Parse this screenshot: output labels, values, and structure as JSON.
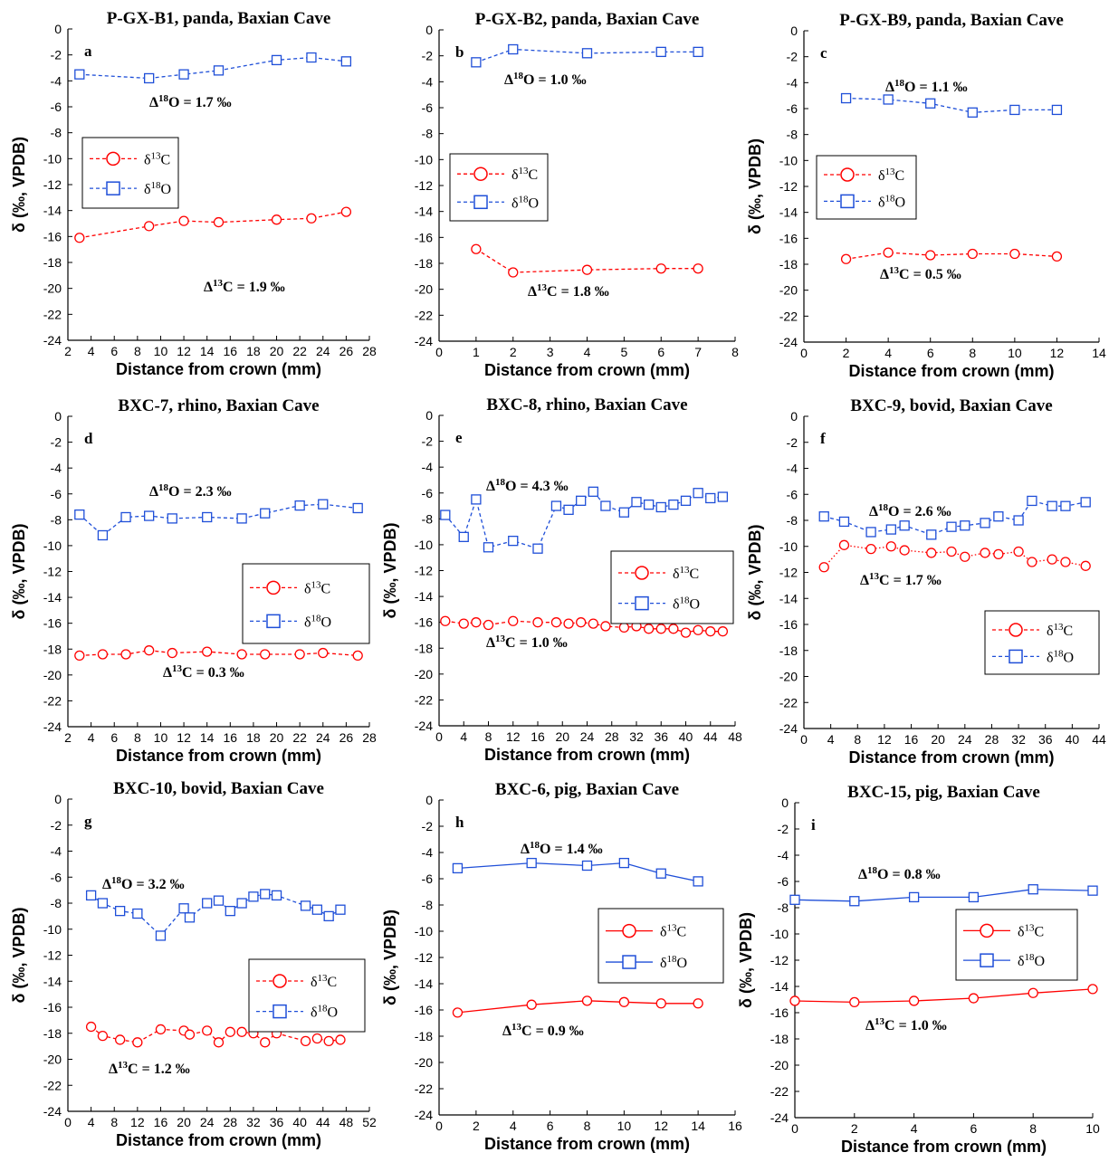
{
  "figure": {
    "colors": {
      "d13C": "#ff0000",
      "d18O": "#1f4fd8"
    },
    "legend": {
      "d13C_label": "δ13C",
      "d18O_label": "δ18O"
    }
  },
  "chart_data": [
    {
      "type": "line",
      "panel_label": "a",
      "title": "P-GX-B1, panda, Baxian Cave",
      "xlabel": "Distance from crown (mm)",
      "ylabel": "δ (‰, VPDB)",
      "xlim": [
        2,
        28
      ],
      "xticks": [
        2,
        4,
        6,
        8,
        10,
        12,
        14,
        16,
        18,
        20,
        22,
        24,
        26,
        28
      ],
      "ylim": [
        -24,
        0
      ],
      "line_style": "dashed",
      "legend_position": "middle-left",
      "series": [
        {
          "name": "δ13C",
          "x": [
            3,
            9,
            12,
            15,
            20,
            23,
            26
          ],
          "y": [
            -16.1,
            -15.2,
            -14.8,
            -14.9,
            -14.7,
            -14.6,
            -14.1
          ]
        },
        {
          "name": "δ18O",
          "x": [
            3,
            9,
            12,
            15,
            20,
            23,
            26
          ],
          "y": [
            -3.5,
            -3.8,
            -3.5,
            -3.2,
            -2.4,
            -2.2,
            -2.5
          ]
        }
      ],
      "annotations": {
        "o": "1.7 ‰",
        "c": "1.9 ‰"
      }
    },
    {
      "type": "line",
      "panel_label": "b",
      "title": "P-GX-B2, panda, Baxian Cave",
      "xlabel": "Distance from crown (mm)",
      "ylabel": "",
      "xlim": [
        0,
        8
      ],
      "xticks": [
        0,
        1,
        2,
        3,
        4,
        5,
        6,
        7,
        8
      ],
      "ylim": [
        -24,
        0
      ],
      "line_style": "dashed",
      "legend_position": "middle-left",
      "series": [
        {
          "name": "δ13C",
          "x": [
            1,
            2,
            4,
            6,
            7
          ],
          "y": [
            -16.9,
            -18.7,
            -18.5,
            -18.4,
            -18.4
          ]
        },
        {
          "name": "δ18O",
          "x": [
            1,
            2,
            4,
            6,
            7
          ],
          "y": [
            -2.5,
            -1.5,
            -1.8,
            -1.7,
            -1.7
          ]
        }
      ],
      "annotations": {
        "o": "1.0 ‰",
        "c": "1.8 ‰"
      }
    },
    {
      "type": "line",
      "panel_label": "c",
      "title": "P-GX-B9, panda, Baxian Cave",
      "xlabel": "Distance from crown (mm)",
      "ylabel": "δ (‰, VPDB)",
      "xlim": [
        0,
        14
      ],
      "xticks": [
        0,
        2,
        4,
        6,
        8,
        10,
        12,
        14
      ],
      "ylim": [
        -24,
        0
      ],
      "line_style": "dashed",
      "legend_position": "middle-left",
      "series": [
        {
          "name": "δ13C",
          "x": [
            2,
            4,
            6,
            8,
            10,
            12
          ],
          "y": [
            -17.6,
            -17.1,
            -17.3,
            -17.2,
            -17.2,
            -17.4
          ]
        },
        {
          "name": "δ18O",
          "x": [
            2,
            4,
            6,
            8,
            10,
            12
          ],
          "y": [
            -5.2,
            -5.3,
            -5.6,
            -6.3,
            -6.1,
            -6.1
          ]
        }
      ],
      "annotations": {
        "o": "1.1 ‰",
        "c": "0.5 ‰"
      }
    },
    {
      "type": "line",
      "panel_label": "d",
      "title": "BXC-7, rhino, Baxian Cave",
      "xlabel": "Distance from crown (mm)",
      "ylabel": "δ (‰, VPDB)",
      "xlim": [
        2,
        28
      ],
      "xticks": [
        2,
        4,
        6,
        8,
        10,
        12,
        14,
        16,
        18,
        20,
        22,
        24,
        26,
        28
      ],
      "ylim": [
        -24,
        0
      ],
      "line_style": "dashed",
      "legend_position": "middle-right",
      "series": [
        {
          "name": "δ13C",
          "x": [
            3,
            5,
            7,
            9,
            11,
            14,
            17,
            19,
            22,
            24,
            27
          ],
          "y": [
            -18.5,
            -18.4,
            -18.4,
            -18.1,
            -18.3,
            -18.2,
            -18.4,
            -18.4,
            -18.4,
            -18.3,
            -18.5
          ]
        },
        {
          "name": "δ18O",
          "x": [
            3,
            5,
            7,
            9,
            11,
            14,
            17,
            19,
            22,
            24,
            27
          ],
          "y": [
            -7.6,
            -9.2,
            -7.8,
            -7.7,
            -7.9,
            -7.8,
            -7.9,
            -7.5,
            -6.9,
            -6.8,
            -7.1
          ]
        }
      ],
      "annotations": {
        "o": "2.3 ‰",
        "c": "0.3 ‰"
      }
    },
    {
      "type": "line",
      "panel_label": "e",
      "title": "BXC-8,  rhino, Baxian Cave",
      "xlabel": "Distance from crown (mm)",
      "ylabel": "δ (‰, VPDB)",
      "xlim": [
        0,
        48
      ],
      "xticks": [
        0,
        4,
        8,
        12,
        16,
        20,
        24,
        28,
        32,
        36,
        40,
        44,
        48
      ],
      "ylim": [
        -24,
        0
      ],
      "line_style": "dashed",
      "legend_position": "middle-right",
      "series": [
        {
          "name": "δ13C",
          "x": [
            1,
            4,
            6,
            8,
            12,
            16,
            19,
            21,
            23,
            25,
            27,
            30,
            32,
            34,
            36,
            38,
            40,
            42,
            44,
            46
          ],
          "y": [
            -15.9,
            -16.1,
            -16.0,
            -16.2,
            -15.9,
            -16.0,
            -16.0,
            -16.1,
            -16.0,
            -16.1,
            -16.3,
            -16.4,
            -16.3,
            -16.5,
            -16.5,
            -16.5,
            -16.8,
            -16.6,
            -16.7,
            -16.7
          ]
        },
        {
          "name": "δ18O",
          "x": [
            1,
            4,
            6,
            8,
            12,
            16,
            19,
            21,
            23,
            25,
            27,
            30,
            32,
            34,
            36,
            38,
            40,
            42,
            44,
            46
          ],
          "y": [
            -7.7,
            -9.4,
            -6.5,
            -10.2,
            -9.7,
            -10.3,
            -7.0,
            -7.3,
            -6.6,
            -5.9,
            -7.0,
            -7.5,
            -6.7,
            -6.9,
            -7.1,
            -6.9,
            -6.6,
            -6.0,
            -6.4,
            -6.3
          ]
        }
      ],
      "annotations": {
        "o": "4.3 ‰",
        "c": "1.0 ‰"
      }
    },
    {
      "type": "line",
      "panel_label": "f",
      "title": "BXC-9, bovid, Baxian Cave",
      "xlabel": "Distance from crown (mm)",
      "ylabel": "δ (‰, VPDB)",
      "xlim": [
        0,
        44
      ],
      "xticks": [
        0,
        4,
        8,
        12,
        16,
        20,
        24,
        28,
        32,
        36,
        40,
        44
      ],
      "ylim": [
        -24,
        0
      ],
      "line_style": "dashed",
      "line_style_d13C": "dotted",
      "legend_position": "bottom-right",
      "series": [
        {
          "name": "δ13C",
          "x": [
            3,
            6,
            10,
            13,
            15,
            19,
            22,
            24,
            27,
            29,
            32,
            34,
            37,
            39,
            42
          ],
          "y": [
            -11.6,
            -9.9,
            -10.2,
            -10.0,
            -10.3,
            -10.5,
            -10.4,
            -10.8,
            -10.5,
            -10.6,
            -10.4,
            -11.2,
            -11.0,
            -11.2,
            -11.5
          ]
        },
        {
          "name": "δ18O",
          "x": [
            3,
            6,
            10,
            13,
            15,
            19,
            22,
            24,
            27,
            29,
            32,
            34,
            37,
            39,
            42
          ],
          "y": [
            -7.7,
            -8.1,
            -8.9,
            -8.7,
            -8.4,
            -9.1,
            -8.5,
            -8.4,
            -8.2,
            -7.7,
            -8.0,
            -6.5,
            -6.9,
            -6.9,
            -6.6
          ]
        }
      ],
      "annotations": {
        "o": "2.6 ‰",
        "c": "1.7 ‰"
      }
    },
    {
      "type": "line",
      "panel_label": "g",
      "title": "BXC-10, bovid, Baxian Cave",
      "xlabel": "Distance from crown (mm)",
      "ylabel": "δ (‰, VPDB)",
      "xlim": [
        0,
        52
      ],
      "xticks": [
        0,
        4,
        8,
        12,
        16,
        20,
        24,
        28,
        32,
        36,
        40,
        44,
        48,
        52
      ],
      "ylim": [
        -24,
        0
      ],
      "line_style": "dashed",
      "legend_position": "middle-right",
      "series": [
        {
          "name": "δ13C",
          "x": [
            4,
            6,
            9,
            12,
            16,
            20,
            21,
            24,
            26,
            28,
            30,
            32,
            34,
            36,
            41,
            43,
            45,
            47
          ],
          "y": [
            -17.5,
            -18.2,
            -18.5,
            -18.7,
            -17.7,
            -17.8,
            -18.1,
            -17.8,
            -18.7,
            -17.9,
            -17.9,
            -18.0,
            -18.7,
            -18.0,
            -18.6,
            -18.4,
            -18.6,
            -18.5
          ]
        },
        {
          "name": "δ18O",
          "x": [
            4,
            6,
            9,
            12,
            16,
            20,
            21,
            24,
            26,
            28,
            30,
            32,
            34,
            36,
            41,
            43,
            45,
            47
          ],
          "y": [
            -7.4,
            -8.0,
            -8.6,
            -8.8,
            -10.5,
            -8.4,
            -9.1,
            -8.0,
            -7.8,
            -8.6,
            -8.0,
            -7.5,
            -7.3,
            -7.4,
            -8.2,
            -8.5,
            -9.0,
            -8.5
          ]
        }
      ],
      "annotations": {
        "o": "3.2 ‰",
        "c": "1.2 ‰"
      }
    },
    {
      "type": "line",
      "panel_label": "h",
      "title": "BXC-6, pig, Baxian Cave",
      "xlabel": "Distance from crown (mm)",
      "ylabel": "δ (‰, VPDB)",
      "xlim": [
        0,
        16
      ],
      "xticks": [
        0,
        2,
        4,
        6,
        8,
        10,
        12,
        14,
        16
      ],
      "ylim": [
        -24,
        0
      ],
      "line_style": "solid",
      "legend_position": "middle-right",
      "series": [
        {
          "name": "δ13C",
          "x": [
            1,
            5,
            8,
            10,
            12,
            14
          ],
          "y": [
            -16.2,
            -15.6,
            -15.3,
            -15.4,
            -15.5,
            -15.5
          ]
        },
        {
          "name": "δ18O",
          "x": [
            1,
            5,
            8,
            10,
            12,
            14
          ],
          "y": [
            -5.2,
            -4.8,
            -5.0,
            -4.8,
            -5.6,
            -6.2
          ]
        }
      ],
      "annotations": {
        "o": "1.4 ‰",
        "c": "0.9 ‰"
      }
    },
    {
      "type": "line",
      "panel_label": "i",
      "title": "BXC-15, pig, Baxian Cave",
      "xlabel": "Distance from crown (mm)",
      "ylabel": "δ (‰, VPDB)",
      "xlim": [
        0,
        10
      ],
      "xticks": [
        0,
        2,
        4,
        6,
        8,
        10
      ],
      "ylim": [
        -24,
        0
      ],
      "line_style": "solid",
      "legend_position": "middle-right",
      "series": [
        {
          "name": "δ13C",
          "x": [
            0,
            2,
            4,
            6,
            8,
            10
          ],
          "y": [
            -15.1,
            -15.2,
            -15.1,
            -14.9,
            -14.5,
            -14.2
          ]
        },
        {
          "name": "δ18O",
          "x": [
            0,
            2,
            4,
            6,
            8,
            10
          ],
          "y": [
            -7.4,
            -7.5,
            -7.2,
            -7.2,
            -6.6,
            -6.7
          ]
        }
      ],
      "annotations": {
        "o": "0.8 ‰",
        "c": "1.0 ‰"
      }
    }
  ]
}
